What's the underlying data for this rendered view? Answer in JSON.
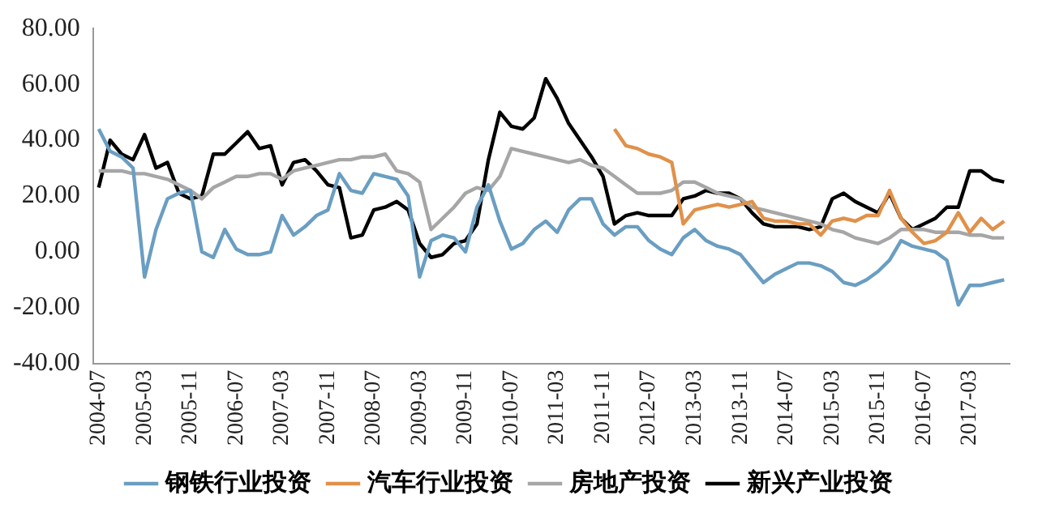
{
  "chart_data": {
    "type": "line",
    "categories": [
      "2004-07",
      null,
      null,
      null,
      "2005-03",
      null,
      null,
      null,
      "2005-11",
      null,
      null,
      null,
      "2006-07",
      null,
      null,
      null,
      "2007-03",
      null,
      null,
      null,
      "2007-11",
      null,
      null,
      null,
      "2008-07",
      null,
      null,
      null,
      "2009-03",
      null,
      null,
      null,
      "2009-11",
      null,
      null,
      null,
      "2010-07",
      null,
      null,
      null,
      "2011-03",
      null,
      null,
      null,
      "2011-11",
      null,
      null,
      null,
      "2012-07",
      null,
      null,
      null,
      "2013-03",
      null,
      null,
      null,
      "2013-11",
      null,
      null,
      null,
      "2014-07",
      null,
      null,
      null,
      "2015-03",
      null,
      null,
      null,
      "2015-11",
      null,
      null,
      null,
      "2016-07",
      null,
      null,
      null,
      "2017-03",
      null,
      null,
      null
    ],
    "series": [
      {
        "name": "钢铁行业投资",
        "color": "#6a9ec2",
        "values": [
          44,
          36,
          34,
          30,
          -9,
          8,
          19,
          21,
          22,
          0,
          -2,
          8,
          1,
          -1,
          -1,
          0,
          13,
          6,
          9,
          13,
          15,
          28,
          22,
          21,
          28,
          27,
          26,
          20,
          -9,
          4,
          6,
          5,
          0,
          16,
          24,
          11,
          1,
          3,
          8,
          11,
          7,
          15,
          19,
          19,
          10,
          6,
          9,
          9,
          4,
          1,
          -1,
          5,
          8,
          4,
          2,
          1,
          -1,
          -6,
          -11,
          -8,
          -6,
          -4,
          -4,
          -5,
          -7,
          -11,
          -12,
          -10,
          -7,
          -3,
          4,
          2,
          1,
          0,
          -3,
          -19,
          -12,
          -12,
          -11,
          -10
        ]
      },
      {
        "name": "汽车行业投资",
        "color": "#e0914a",
        "values": [
          null,
          null,
          null,
          null,
          null,
          null,
          null,
          null,
          null,
          null,
          null,
          null,
          null,
          null,
          null,
          null,
          null,
          null,
          null,
          null,
          null,
          null,
          null,
          null,
          null,
          null,
          null,
          null,
          null,
          null,
          null,
          null,
          null,
          null,
          null,
          null,
          null,
          null,
          null,
          null,
          null,
          null,
          null,
          null,
          null,
          44,
          38,
          37,
          35,
          34,
          32,
          10,
          15,
          16,
          17,
          16,
          17,
          18,
          12,
          11,
          11,
          10,
          10,
          6,
          11,
          12,
          11,
          13,
          13,
          22,
          12,
          7,
          3,
          4,
          7,
          14,
          7,
          12,
          8,
          11
        ]
      },
      {
        "name": "房地产投资",
        "color": "#a6a6a6",
        "values": [
          29,
          29,
          29,
          28,
          28,
          27,
          26,
          24,
          22,
          19,
          23,
          25,
          27,
          27,
          28,
          28,
          26,
          29,
          30,
          31,
          32,
          33,
          33,
          34,
          34,
          35,
          29,
          28,
          25,
          8,
          12,
          16,
          21,
          23,
          22,
          27,
          37,
          36,
          35,
          34,
          33,
          32,
          33,
          31,
          30,
          27,
          24,
          21,
          21,
          21,
          22,
          25,
          25,
          23,
          21,
          20,
          19,
          16,
          15,
          14,
          13,
          12,
          11,
          10,
          8,
          7,
          5,
          4,
          3,
          5,
          8,
          8,
          8,
          7,
          7,
          7,
          6,
          6,
          5,
          5
        ]
      },
      {
        "name": "新兴产业投资",
        "color": "#000000",
        "values": [
          23,
          40,
          35,
          33,
          42,
          30,
          32,
          21,
          19,
          20,
          35,
          35,
          39,
          43,
          37,
          38,
          24,
          32,
          33,
          29,
          24,
          23,
          5,
          6,
          15,
          16,
          18,
          15,
          3,
          -2,
          -1,
          3,
          4,
          10,
          33,
          50,
          45,
          44,
          48,
          62,
          55,
          46,
          40,
          34,
          27,
          10,
          13,
          14,
          13,
          13,
          13,
          19,
          20,
          22,
          21,
          21,
          19,
          14,
          10,
          9,
          9,
          9,
          8,
          9,
          19,
          21,
          18,
          16,
          14,
          21,
          12,
          8,
          10,
          12,
          16,
          16,
          29,
          29,
          26,
          25
        ]
      }
    ],
    "ylim": [
      -40,
      80
    ],
    "yticks": [
      {
        "value": -40,
        "label": "-40.00"
      },
      {
        "value": -20,
        "label": "-20.00"
      },
      {
        "value": 0,
        "label": "0.00"
      },
      {
        "value": 20,
        "label": "20.00"
      },
      {
        "value": 40,
        "label": "40.00"
      },
      {
        "value": 60,
        "label": "60.00"
      },
      {
        "value": 80,
        "label": "80.00"
      }
    ],
    "legend": "bottom",
    "grid": false,
    "marker": "none",
    "line_style": "solid"
  }
}
